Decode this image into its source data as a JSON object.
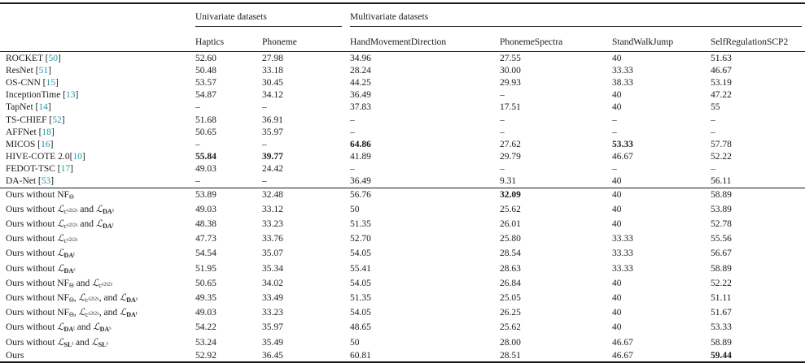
{
  "colors": {
    "citation": "#2596ad",
    "text": "#1b1b1b",
    "rule": "#1a1a1a",
    "background": "#ffffff"
  },
  "table": {
    "group_headers": [
      {
        "label": "Univariate datasets",
        "span": 2
      },
      {
        "label": "Multivariate datasets",
        "span": 4
      }
    ],
    "columns": [
      "Haptics",
      "Phoneme",
      "HandMovementDirection",
      "PhonemeSpectra",
      "StandWalkJump",
      "SelfRegulationSCP2"
    ],
    "baseline_rows": [
      {
        "name": "ROCKET ",
        "cite": "50",
        "values": [
          "52.60",
          "27.98",
          "34.96",
          "27.55",
          "40",
          "51.63"
        ]
      },
      {
        "name": "ResNet ",
        "cite": "51",
        "values": [
          "50.48",
          "33.18",
          "28.24",
          "30.00",
          "33.33",
          "46.67"
        ]
      },
      {
        "name": "OS-CNN ",
        "cite": "15",
        "values": [
          "53.57",
          "30.45",
          "44.25",
          "29.93",
          "38.33",
          "53.19"
        ]
      },
      {
        "name": "InceptionTime ",
        "cite": "13",
        "values": [
          "54.87",
          "34.12",
          "36.49",
          "–",
          "40",
          "47.22"
        ]
      },
      {
        "name": "TapNet ",
        "cite": "14",
        "values": [
          "–",
          "–",
          "37.83",
          "17.51",
          "40",
          "55"
        ]
      },
      {
        "name": "TS-CHIEF ",
        "cite": "52",
        "values": [
          "51.68",
          "36.91",
          "–",
          "–",
          "–",
          "–"
        ]
      },
      {
        "name": "AFFNet ",
        "cite": "18",
        "values": [
          "50.65",
          "35.97",
          "–",
          "–",
          "–",
          "–"
        ]
      },
      {
        "name": "MICOS ",
        "cite": "16",
        "values": [
          "–",
          "–",
          "64.86",
          "27.62",
          "53.33",
          "57.78"
        ],
        "bold": [
          0,
          0,
          1,
          0,
          1,
          0
        ]
      },
      {
        "name": "HIVE-COTE 2.0",
        "cite": "10",
        "values": [
          "55.84",
          "39.77",
          "41.89",
          "29.79",
          "46.67",
          "52.22"
        ],
        "bold": [
          1,
          1,
          0,
          0,
          0,
          0
        ]
      },
      {
        "name": "FEDOT-TSC ",
        "cite": "17",
        "values": [
          "49.03",
          "24.42",
          "–",
          "–",
          "–",
          "–"
        ]
      },
      {
        "name": "DA-Net ",
        "cite": "53",
        "values": [
          "–",
          "–",
          "36.49",
          "9.31",
          "40",
          "56.11"
        ]
      }
    ],
    "ours_rows": [
      {
        "parts": [
          {
            "x": "Ours without NF"
          },
          {
            "x": "Θ",
            "c": "sub"
          }
        ],
        "values": [
          "53.89",
          "32.48",
          "56.76",
          "32.09",
          "40",
          "58.89"
        ],
        "bold": [
          0,
          0,
          0,
          1,
          0,
          0
        ]
      },
      {
        "parts": [
          {
            "x": "Ours without "
          },
          {
            "x": "ℒ",
            "c": "L"
          },
          {
            "x": "c",
            "c": "sub"
          },
          {
            "x": "s2t2s",
            "c": "ss"
          },
          {
            "x": " and "
          },
          {
            "x": "ℒ",
            "c": "L"
          },
          {
            "x": "DA",
            "c": "subb"
          },
          {
            "x": "s",
            "c": "ss"
          }
        ],
        "values": [
          "49.03",
          "33.12",
          "50",
          "25.62",
          "40",
          "53.89"
        ]
      },
      {
        "parts": [
          {
            "x": "Ours without "
          },
          {
            "x": "ℒ",
            "c": "L"
          },
          {
            "x": "c",
            "c": "sub"
          },
          {
            "x": "s2t2s",
            "c": "ss"
          },
          {
            "x": " and "
          },
          {
            "x": "ℒ",
            "c": "L"
          },
          {
            "x": "DA",
            "c": "subb"
          },
          {
            "x": "t",
            "c": "ss"
          }
        ],
        "values": [
          "48.38",
          "33.23",
          "51.35",
          "26.01",
          "40",
          "52.78"
        ]
      },
      {
        "parts": [
          {
            "x": "Ours without "
          },
          {
            "x": "ℒ",
            "c": "L"
          },
          {
            "x": "c",
            "c": "sub"
          },
          {
            "x": "s2t2s",
            "c": "ss"
          }
        ],
        "values": [
          "47.73",
          "33.76",
          "52.70",
          "25.80",
          "33.33",
          "55.56"
        ]
      },
      {
        "parts": [
          {
            "x": "Ours without "
          },
          {
            "x": "ℒ",
            "c": "L"
          },
          {
            "x": "DA",
            "c": "subb"
          },
          {
            "x": "t",
            "c": "ss"
          }
        ],
        "values": [
          "54.54",
          "35.07",
          "54.05",
          "28.54",
          "33.33",
          "56.67"
        ]
      },
      {
        "parts": [
          {
            "x": "Ours without "
          },
          {
            "x": "ℒ",
            "c": "L"
          },
          {
            "x": "DA",
            "c": "subb"
          },
          {
            "x": "s",
            "c": "ss"
          }
        ],
        "values": [
          "51.95",
          "35.34",
          "55.41",
          "28.63",
          "33.33",
          "58.89"
        ]
      },
      {
        "parts": [
          {
            "x": "Ours without NF"
          },
          {
            "x": "Θ",
            "c": "sub"
          },
          {
            "x": " and "
          },
          {
            "x": "ℒ",
            "c": "L"
          },
          {
            "x": "c",
            "c": "sub"
          },
          {
            "x": "s2t2s",
            "c": "ss"
          }
        ],
        "values": [
          "50.65",
          "34.02",
          "54.05",
          "26.84",
          "40",
          "52.22"
        ]
      },
      {
        "parts": [
          {
            "x": "Ours without NF"
          },
          {
            "x": "Θ",
            "c": "sub"
          },
          {
            "x": ", "
          },
          {
            "x": "ℒ",
            "c": "L"
          },
          {
            "x": "c",
            "c": "sub"
          },
          {
            "x": "s2t2s",
            "c": "ss"
          },
          {
            "x": ", and "
          },
          {
            "x": "ℒ",
            "c": "L"
          },
          {
            "x": "DA",
            "c": "subb"
          },
          {
            "x": "s",
            "c": "ss"
          }
        ],
        "values": [
          "49.35",
          "33.49",
          "51.35",
          "25.05",
          "40",
          "51.11"
        ]
      },
      {
        "parts": [
          {
            "x": "Ours without NF"
          },
          {
            "x": "Θ",
            "c": "sub"
          },
          {
            "x": ", "
          },
          {
            "x": "ℒ",
            "c": "L"
          },
          {
            "x": "c",
            "c": "sub"
          },
          {
            "x": "s2t2s",
            "c": "ss"
          },
          {
            "x": ", and "
          },
          {
            "x": "ℒ",
            "c": "L"
          },
          {
            "x": "DA",
            "c": "subb"
          },
          {
            "x": "t",
            "c": "ss"
          }
        ],
        "values": [
          "49.03",
          "33.23",
          "54.05",
          "26.25",
          "40",
          "51.67"
        ]
      },
      {
        "parts": [
          {
            "x": "Ours without "
          },
          {
            "x": "ℒ",
            "c": "L"
          },
          {
            "x": "DA",
            "c": "subb"
          },
          {
            "x": "t",
            "c": "ss"
          },
          {
            "x": " and "
          },
          {
            "x": "ℒ",
            "c": "L"
          },
          {
            "x": "DA",
            "c": "subb"
          },
          {
            "x": "s",
            "c": "ss"
          }
        ],
        "values": [
          "54.22",
          "35.97",
          "48.65",
          "25.62",
          "40",
          "53.33"
        ]
      },
      {
        "parts": [
          {
            "x": "Ours without "
          },
          {
            "x": "ℒ",
            "c": "L"
          },
          {
            "x": "SL",
            "c": "subb"
          },
          {
            "x": "t",
            "c": "ss"
          },
          {
            "x": " and "
          },
          {
            "x": "ℒ",
            "c": "L"
          },
          {
            "x": "SL",
            "c": "subb"
          },
          {
            "x": "s",
            "c": "ss"
          }
        ],
        "values": [
          "53.24",
          "35.49",
          "50",
          "28.00",
          "46.67",
          "58.89"
        ]
      },
      {
        "parts": [
          {
            "x": "Ours"
          }
        ],
        "values": [
          "52.92",
          "36.45",
          "60.81",
          "28.51",
          "46.67",
          "59.44"
        ],
        "bold": [
          0,
          0,
          0,
          0,
          0,
          1
        ]
      }
    ]
  }
}
